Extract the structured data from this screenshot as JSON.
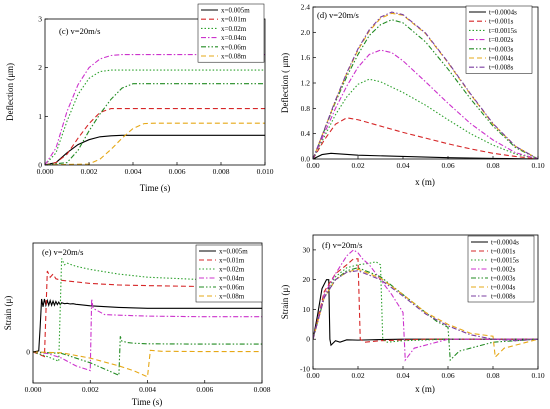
{
  "chart_data": [
    {
      "type": "line",
      "title": "(c) v=20m/s",
      "xlabel": "Time (s)",
      "ylabel": "Deflection (μm)",
      "xlim": [
        0,
        0.01
      ],
      "ylim": [
        0,
        3
      ],
      "xticks": [
        "0.000",
        "0.002",
        "0.004",
        "0.006",
        "0.008",
        "0.010"
      ],
      "yticks": [
        "0",
        "1",
        "2",
        "3"
      ],
      "legend_position": "top-right",
      "series": [
        {
          "name": "x=0.005m",
          "color": "#000000",
          "dash": "solid",
          "x": [
            0,
            0.0005,
            0.001,
            0.0015,
            0.002,
            0.0025,
            0.003,
            0.0035,
            0.004,
            0.005,
            0.006,
            0.008,
            0.01
          ],
          "y": [
            0,
            0.05,
            0.25,
            0.42,
            0.52,
            0.58,
            0.6,
            0.61,
            0.61,
            0.61,
            0.61,
            0.61,
            0.61
          ]
        },
        {
          "name": "x=0.01m",
          "color": "#d62728",
          "dash": "dash",
          "x": [
            0,
            0.0005,
            0.001,
            0.0015,
            0.002,
            0.0025,
            0.003,
            0.0035,
            0.004,
            0.005,
            0.006,
            0.008,
            0.01
          ],
          "y": [
            0,
            0.05,
            0.22,
            0.55,
            0.85,
            1.08,
            1.16,
            1.16,
            1.16,
            1.16,
            1.16,
            1.16,
            1.16
          ]
        },
        {
          "name": "x=0.02m",
          "color": "#2ca02c",
          "dash": "dot",
          "x": [
            0,
            0.0005,
            0.001,
            0.0015,
            0.002,
            0.0025,
            0.003,
            0.0035,
            0.004,
            0.005,
            0.006,
            0.008,
            0.01
          ],
          "y": [
            0,
            0.25,
            0.9,
            1.45,
            1.78,
            1.92,
            1.95,
            1.95,
            1.95,
            1.95,
            1.95,
            1.95,
            1.95
          ]
        },
        {
          "name": "x=0.04m",
          "color": "#cc33cc",
          "dash": "dashdot",
          "x": [
            0,
            0.0005,
            0.001,
            0.0015,
            0.002,
            0.0025,
            0.003,
            0.0035,
            0.004,
            0.005,
            0.006,
            0.008,
            0.01
          ],
          "y": [
            0,
            0.35,
            1.1,
            1.65,
            2.0,
            2.18,
            2.25,
            2.27,
            2.27,
            2.27,
            2.27,
            2.27,
            2.27
          ]
        },
        {
          "name": "x=0.06m",
          "color": "#228b22",
          "dash": "dashdotdot",
          "x": [
            0,
            0.001,
            0.0015,
            0.002,
            0.0025,
            0.003,
            0.0035,
            0.004,
            0.005,
            0.006,
            0.008,
            0.01
          ],
          "y": [
            0,
            0.05,
            0.3,
            0.7,
            1.05,
            1.35,
            1.58,
            1.67,
            1.67,
            1.67,
            1.67,
            1.67
          ]
        },
        {
          "name": "x=0.08m",
          "color": "#e6a817",
          "dash": "dash",
          "x": [
            0,
            0.002,
            0.0025,
            0.003,
            0.0035,
            0.004,
            0.0045,
            0.005,
            0.006,
            0.008,
            0.01
          ],
          "y": [
            0,
            0.02,
            0.12,
            0.32,
            0.55,
            0.75,
            0.85,
            0.86,
            0.86,
            0.86,
            0.86
          ]
        }
      ]
    },
    {
      "type": "line",
      "title": "(d) v=20m/s",
      "xlabel": "x (m)",
      "ylabel": "Deflection ( μm)",
      "xlim": [
        0,
        0.1
      ],
      "ylim": [
        0,
        2.4
      ],
      "xticks": [
        "0.00",
        "0.02",
        "0.04",
        "0.06",
        "0.08",
        "0.10"
      ],
      "yticks": [
        "0.0",
        "0.4",
        "0.8",
        "1.2",
        "1.6",
        "2.0",
        "2.4"
      ],
      "legend_position": "top-right",
      "series": [
        {
          "name": "t=0.0004s",
          "color": "#000000",
          "dash": "solid",
          "x": [
            0,
            0.004,
            0.008,
            0.012,
            0.02,
            0.04,
            0.06,
            0.08,
            0.1
          ],
          "y": [
            0,
            0.07,
            0.09,
            0.08,
            0.06,
            0.04,
            0.02,
            0.01,
            0
          ]
        },
        {
          "name": "t=0.001s",
          "color": "#d62728",
          "dash": "dash",
          "x": [
            0,
            0.005,
            0.01,
            0.015,
            0.02,
            0.03,
            0.04,
            0.05,
            0.06,
            0.07,
            0.08,
            0.09,
            0.1
          ],
          "y": [
            0,
            0.3,
            0.55,
            0.65,
            0.62,
            0.52,
            0.42,
            0.33,
            0.24,
            0.16,
            0.09,
            0.04,
            0
          ]
        },
        {
          "name": "t=0.0015s",
          "color": "#2ca02c",
          "dash": "dot",
          "x": [
            0,
            0.005,
            0.01,
            0.015,
            0.02,
            0.025,
            0.03,
            0.04,
            0.05,
            0.06,
            0.07,
            0.08,
            0.09,
            0.1
          ],
          "y": [
            0,
            0.35,
            0.7,
            0.98,
            1.18,
            1.26,
            1.22,
            1.05,
            0.85,
            0.62,
            0.4,
            0.22,
            0.08,
            0
          ]
        },
        {
          "name": "t=0.002s",
          "color": "#cc33cc",
          "dash": "dashdot",
          "x": [
            0,
            0.005,
            0.01,
            0.015,
            0.02,
            0.025,
            0.03,
            0.035,
            0.04,
            0.05,
            0.06,
            0.07,
            0.08,
            0.09,
            0.1
          ],
          "y": [
            0,
            0.4,
            0.8,
            1.15,
            1.45,
            1.65,
            1.72,
            1.68,
            1.55,
            1.22,
            0.88,
            0.56,
            0.3,
            0.1,
            0
          ]
        },
        {
          "name": "t=0.003s",
          "color": "#228b22",
          "dash": "dashdotdot",
          "x": [
            0,
            0.005,
            0.01,
            0.015,
            0.02,
            0.025,
            0.03,
            0.035,
            0.04,
            0.05,
            0.06,
            0.07,
            0.08,
            0.09,
            0.1
          ],
          "y": [
            0,
            0.45,
            0.9,
            1.3,
            1.65,
            1.95,
            2.12,
            2.2,
            2.15,
            1.85,
            1.42,
            0.95,
            0.52,
            0.18,
            0
          ]
        },
        {
          "name": "t=0.004s",
          "color": "#e6a817",
          "dash": "dash",
          "x": [
            0,
            0.005,
            0.01,
            0.015,
            0.02,
            0.025,
            0.03,
            0.035,
            0.04,
            0.05,
            0.06,
            0.07,
            0.08,
            0.09,
            0.1
          ],
          "y": [
            0,
            0.46,
            0.92,
            1.35,
            1.72,
            2.02,
            2.22,
            2.3,
            2.27,
            1.98,
            1.52,
            1.02,
            0.55,
            0.2,
            0
          ]
        },
        {
          "name": "t=0.008s",
          "color": "#7b3fa0",
          "dash": "dashdot",
          "x": [
            0,
            0.005,
            0.01,
            0.015,
            0.02,
            0.025,
            0.03,
            0.035,
            0.04,
            0.05,
            0.06,
            0.07,
            0.08,
            0.09,
            0.1
          ],
          "y": [
            0,
            0.46,
            0.93,
            1.36,
            1.74,
            2.04,
            2.24,
            2.32,
            2.28,
            1.99,
            1.53,
            1.03,
            0.56,
            0.2,
            0
          ]
        }
      ]
    },
    {
      "type": "line",
      "title": "(e) v=20m/s",
      "xlabel": "Time (s)",
      "ylabel": "Strain (μ)",
      "xlim": [
        0,
        0.008
      ],
      "ylim": [
        -10,
        35
      ],
      "xticks": [
        "0.000",
        "0.002",
        "0.004",
        "0.006",
        "0.008"
      ],
      "yticks": [
        "0"
      ],
      "legend_position": "top-right",
      "series": [
        {
          "name": "x=0.005m",
          "color": "#000000",
          "dash": "solid",
          "x": [
            0,
            0.0002,
            0.00025,
            0.0003,
            0.00035,
            0.0004,
            0.00045,
            0.0005,
            0.00055,
            0.0006,
            0.00065,
            0.0007,
            0.00075,
            0.0008,
            0.00085,
            0.0009,
            0.00095,
            0.001,
            0.0011,
            0.0012,
            0.0013,
            0.0014,
            0.0015,
            0.0016,
            0.002,
            0.003,
            0.004,
            0.006,
            0.008
          ],
          "y": [
            0,
            0.3,
            8,
            17,
            14.5,
            17,
            15,
            16.5,
            15,
            16.5,
            15,
            16.3,
            15,
            16.2,
            15.2,
            16,
            15.2,
            15.8,
            15.5,
            15.6,
            15.4,
            15.5,
            15.3,
            15.2,
            14.8,
            14.3,
            14,
            14,
            14
          ]
        },
        {
          "name": "x=0.01m",
          "color": "#d62728",
          "dash": "dash",
          "x": [
            0,
            0.0004,
            0.0005,
            0.0006,
            0.0007,
            0.0008,
            0.001,
            0.0015,
            0.002,
            0.003,
            0.004,
            0.006,
            0.008
          ],
          "y": [
            0,
            -1.5,
            26,
            24,
            25,
            23.5,
            23,
            22.5,
            22,
            21.5,
            21.3,
            21,
            21
          ]
        },
        {
          "name": "x=0.02m",
          "color": "#2ca02c",
          "dash": "dot",
          "x": [
            0,
            0.0005,
            0.0009,
            0.001,
            0.0011,
            0.0012,
            0.0015,
            0.002,
            0.003,
            0.004,
            0.006,
            0.008
          ],
          "y": [
            0,
            -1.5,
            -3,
            30,
            28,
            28.5,
            27.5,
            26.5,
            25,
            24,
            23.2,
            23
          ]
        },
        {
          "name": "x=0.04m",
          "color": "#cc33cc",
          "dash": "dashdot",
          "x": [
            0,
            0.0005,
            0.001,
            0.0015,
            0.002,
            0.00205,
            0.0021,
            0.0023,
            0.0025,
            0.003,
            0.004,
            0.006,
            0.008
          ],
          "y": [
            0,
            -0.5,
            -2,
            -4.5,
            -6,
            17,
            14,
            13,
            12,
            11.8,
            11.5,
            11.3,
            11.3
          ]
        },
        {
          "name": "x=0.06m",
          "color": "#228b22",
          "dash": "dashdotdot",
          "x": [
            0,
            0.001,
            0.002,
            0.0025,
            0.003,
            0.00305,
            0.0031,
            0.0033,
            0.0035,
            0.004,
            0.006,
            0.008
          ],
          "y": [
            0,
            -0.5,
            -3.5,
            -5.5,
            -7.5,
            5,
            3.5,
            3,
            2.8,
            2.6,
            2.5,
            2.5
          ]
        },
        {
          "name": "x=0.08m",
          "color": "#e6a817",
          "dash": "dash",
          "x": [
            0,
            0.001,
            0.002,
            0.003,
            0.0035,
            0.004,
            0.0041,
            0.0045,
            0.006,
            0.008
          ],
          "y": [
            0,
            -0.3,
            -2,
            -4.5,
            -6,
            -8,
            0.5,
            0.2,
            0.1,
            0.1
          ]
        }
      ]
    },
    {
      "type": "line",
      "title": "(f) v=20m/s",
      "xlabel": "x (m)",
      "ylabel": "Strain (μ)",
      "xlim": [
        0,
        0.1
      ],
      "ylim": [
        -10,
        35
      ],
      "xticks": [
        "0.00",
        "0.02",
        "0.04",
        "0.06",
        "0.08",
        "0.10"
      ],
      "yticks": [
        "-10",
        "0",
        "10",
        "20",
        "30"
      ],
      "legend_position": "top-right",
      "series": [
        {
          "name": "t=0.0004s",
          "color": "#000000",
          "dash": "solid",
          "x": [
            0,
            0.002,
            0.004,
            0.006,
            0.007,
            0.0075,
            0.008,
            0.01,
            0.012,
            0.015,
            0.02,
            0.03,
            0.04,
            0.06,
            0.08,
            0.1
          ],
          "y": [
            0,
            8,
            17,
            20,
            20,
            0,
            -2,
            -0.5,
            -1,
            -0.2,
            -0.3,
            -0.1,
            0,
            0,
            0,
            0
          ]
        },
        {
          "name": "t=0.001s",
          "color": "#d62728",
          "dash": "dash",
          "x": [
            0,
            0.005,
            0.01,
            0.015,
            0.018,
            0.02,
            0.021,
            0.023,
            0.03,
            0.05,
            0.07,
            0.1
          ],
          "y": [
            0,
            16,
            22,
            25,
            27,
            27,
            0,
            -1,
            -0.5,
            0,
            0,
            0
          ]
        },
        {
          "name": "t=0.0015s",
          "color": "#2ca02c",
          "dash": "dot",
          "x": [
            0,
            0.005,
            0.01,
            0.015,
            0.02,
            0.025,
            0.028,
            0.03,
            0.031,
            0.033,
            0.04,
            0.06,
            0.1
          ],
          "y": [
            0,
            15,
            21,
            24,
            25,
            25.5,
            26,
            25,
            0,
            -1,
            -0.5,
            0,
            0
          ]
        },
        {
          "name": "t=0.002s",
          "color": "#cc33cc",
          "dash": "dashdot",
          "x": [
            0,
            0.005,
            0.01,
            0.015,
            0.018,
            0.02,
            0.022,
            0.025,
            0.03,
            0.035,
            0.04,
            0.041,
            0.045,
            0.06,
            0.08,
            0.1
          ],
          "y": [
            0,
            15,
            22,
            28,
            30,
            29,
            27,
            25,
            20,
            15,
            9,
            -7,
            -3,
            0,
            0,
            0
          ]
        },
        {
          "name": "t=0.003s",
          "color": "#228b22",
          "dash": "dashdotdot",
          "x": [
            0,
            0.005,
            0.01,
            0.015,
            0.02,
            0.03,
            0.04,
            0.05,
            0.055,
            0.06,
            0.061,
            0.065,
            0.08,
            0.1
          ],
          "y": [
            0,
            14,
            20,
            23,
            24,
            21,
            15,
            9,
            6,
            4,
            -7,
            -4,
            -1,
            0
          ]
        },
        {
          "name": "t=0.004s",
          "color": "#e6a817",
          "dash": "dash",
          "x": [
            0,
            0.005,
            0.01,
            0.015,
            0.02,
            0.03,
            0.04,
            0.05,
            0.06,
            0.07,
            0.08,
            0.081,
            0.085,
            0.1
          ],
          "y": [
            0,
            14,
            20,
            22.5,
            23.5,
            20.5,
            15,
            9,
            5,
            2,
            1,
            -6,
            -3,
            0
          ]
        },
        {
          "name": "t=0.008s",
          "color": "#7b3fa0",
          "dash": "dashdot",
          "x": [
            0,
            0.005,
            0.01,
            0.015,
            0.02,
            0.03,
            0.04,
            0.05,
            0.06,
            0.07,
            0.08,
            0.09,
            0.1
          ],
          "y": [
            0,
            14,
            20,
            22.5,
            23,
            20,
            14.5,
            8.5,
            4.5,
            1.5,
            0,
            -0.5,
            0
          ]
        }
      ]
    }
  ]
}
